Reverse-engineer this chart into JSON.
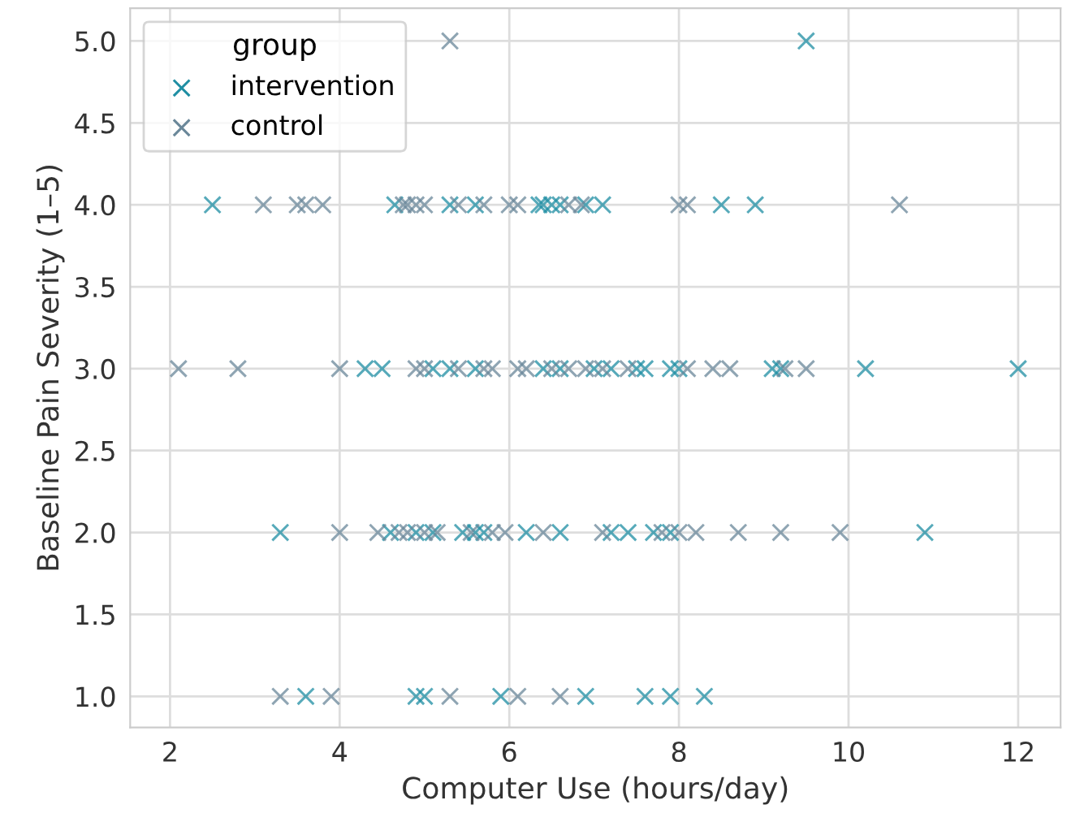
{
  "chart_data": {
    "type": "scatter",
    "xlabel": "Computer Use (hours/day)",
    "ylabel": "Baseline Pain Severity (1–5)",
    "legend_title": "group",
    "legend": "top left",
    "marker": "cross",
    "grid": true,
    "xlim": [
      1.53,
      12.5
    ],
    "xticks": [
      2,
      4,
      6,
      8,
      10,
      12
    ],
    "ylim": [
      0.81,
      5.2
    ],
    "yticks": [
      {
        "value": 1,
        "label": "1.0"
      },
      {
        "value": 1.5,
        "label": "1.5"
      },
      {
        "value": 2,
        "label": "2.0"
      },
      {
        "value": 2.5,
        "label": "2.5"
      },
      {
        "value": 3,
        "label": "3.0"
      },
      {
        "value": 3.5,
        "label": "3.5"
      },
      {
        "value": 4,
        "label": "4.0"
      },
      {
        "value": 4.5,
        "label": "4.5"
      },
      {
        "value": 5,
        "label": "5.0"
      }
    ],
    "series": [
      {
        "name": "intervention",
        "color": "#1f8ea3",
        "x": [
          9.5,
          2.5,
          4.65,
          5.3,
          5.6,
          6.35,
          6.4,
          6.5,
          6.6,
          6.9,
          7.1,
          8.5,
          8.9,
          4.3,
          4.5,
          5.1,
          5.3,
          5.6,
          6.4,
          6.6,
          7.0,
          7.2,
          7.5,
          7.6,
          7.9,
          8.0,
          9.1,
          9.2,
          10.2,
          12.0,
          3.3,
          4.6,
          4.9,
          5.1,
          5.45,
          5.6,
          5.7,
          6.2,
          6.6,
          7.2,
          7.4,
          7.7,
          7.9,
          10.9,
          3.6,
          4.9,
          5.0,
          5.9,
          6.9,
          7.6,
          7.9,
          8.3
        ],
        "values": [
          5,
          4,
          4,
          4,
          4,
          4,
          4,
          4,
          4,
          4,
          4,
          4,
          4,
          3,
          3,
          3,
          3,
          3,
          3,
          3,
          3,
          3,
          3,
          3,
          3,
          3,
          3,
          3,
          3,
          3,
          2,
          2,
          2,
          2,
          2,
          2,
          2,
          2,
          2,
          2,
          2,
          2,
          2,
          2,
          1,
          1,
          1,
          1,
          1,
          1,
          1,
          1
        ]
      },
      {
        "name": "control",
        "color": "#6a8799",
        "x": [
          5.3,
          3.1,
          3.5,
          3.6,
          3.8,
          4.75,
          4.8,
          4.9,
          5.0,
          5.4,
          5.7,
          6.0,
          6.1,
          6.7,
          6.85,
          8.0,
          8.1,
          10.6,
          2.1,
          2.8,
          4.0,
          4.9,
          5.0,
          5.4,
          5.7,
          5.8,
          6.1,
          6.2,
          6.5,
          6.7,
          6.9,
          7.1,
          7.4,
          8.1,
          8.4,
          8.6,
          9.25,
          9.5,
          4.0,
          4.45,
          4.7,
          4.8,
          5.0,
          5.15,
          5.55,
          5.8,
          5.95,
          6.4,
          7.1,
          7.8,
          8.0,
          8.2,
          8.7,
          9.2,
          9.9,
          3.3,
          3.9,
          5.3,
          6.1,
          6.6
        ],
        "values": [
          5,
          4,
          4,
          4,
          4,
          4,
          4,
          4,
          4,
          4,
          4,
          4,
          4,
          4,
          4,
          4,
          4,
          4,
          3,
          3,
          3,
          3,
          3,
          3,
          3,
          3,
          3,
          3,
          3,
          3,
          3,
          3,
          3,
          3,
          3,
          3,
          3,
          3,
          2,
          2,
          2,
          2,
          2,
          2,
          2,
          2,
          2,
          2,
          2,
          2,
          2,
          2,
          2,
          2,
          2,
          1,
          1,
          1,
          1,
          1
        ]
      }
    ]
  }
}
